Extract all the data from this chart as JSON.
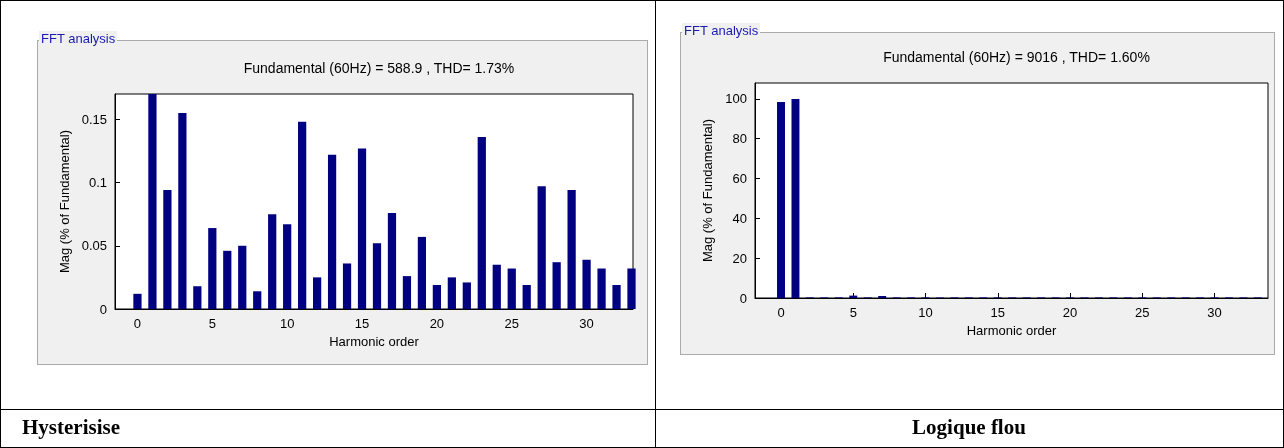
{
  "chart_data": [
    {
      "type": "bar",
      "title": "Fundamental (60Hz) = 588.9 , THD= 1.73%",
      "xlabel": "Harmonic order",
      "ylabel": "Mag (% of Fundamental)",
      "annotations": [
        "FFT analysis",
        "Hysterisise"
      ],
      "x": [
        0,
        1,
        2,
        3,
        4,
        5,
        6,
        7,
        8,
        9,
        10,
        11,
        12,
        13,
        14,
        15,
        16,
        17,
        18,
        19,
        20,
        21,
        22,
        23,
        24,
        25,
        26,
        27,
        28,
        29,
        30,
        31,
        32,
        33
      ],
      "series": [
        {
          "color": "#000080",
          "values": [
            0.012,
            0.17,
            0.094,
            0.155,
            0.018,
            0.064,
            0.046,
            0.05,
            0.014,
            0.075,
            0.067,
            0.148,
            0.025,
            0.122,
            0.036,
            0.127,
            0.052,
            0.076,
            0.026,
            0.057,
            0.019,
            0.025,
            0.021,
            0.136,
            0.035,
            0.032,
            0.019,
            0.097,
            0.037,
            0.094,
            0.039,
            0.032,
            0.019,
            0.032
          ]
        }
      ],
      "xlim": [
        -1.5,
        33.1
      ],
      "xticks": [
        0,
        5,
        10,
        15,
        20,
        25,
        30
      ],
      "ylim": [
        0,
        0.17
      ],
      "yticks": [
        0,
        0.05,
        0.1,
        0.15
      ],
      "grid": false
    },
    {
      "type": "bar",
      "title": "Fundamental (60Hz) = 9016 , THD= 1.60%",
      "xlabel": "Harmonic order",
      "ylabel": "Mag (% of Fundamental)",
      "annotations": [
        "FFT analysis",
        "Logique flou"
      ],
      "x": [
        0,
        1,
        2,
        3,
        4,
        5,
        6,
        7,
        8,
        9,
        10,
        11,
        12,
        13,
        14,
        15,
        16,
        17,
        18,
        19,
        20,
        21,
        22,
        23,
        24,
        25,
        26,
        27,
        28,
        29,
        30,
        31,
        32,
        33
      ],
      "series": [
        {
          "color": "#000080",
          "values": [
            98.5,
            100,
            0.3,
            0.3,
            0.3,
            1.2,
            0.3,
            1,
            0.3,
            0.3,
            0.3,
            0.3,
            0.3,
            0.3,
            0.3,
            0.3,
            0.3,
            0.3,
            0.3,
            0.3,
            0.3,
            0.3,
            0.3,
            0.3,
            0.3,
            0.3,
            0.3,
            0.3,
            0.3,
            0.3,
            0.3,
            0.3,
            0.3,
            0.3
          ]
        }
      ],
      "xlim": [
        -1.8,
        33.7
      ],
      "xticks": [
        0,
        5,
        10,
        15,
        20,
        25,
        30
      ],
      "ylim": [
        0,
        108
      ],
      "yticks": [
        0,
        20,
        40,
        60,
        80,
        100
      ],
      "grid": false
    }
  ]
}
